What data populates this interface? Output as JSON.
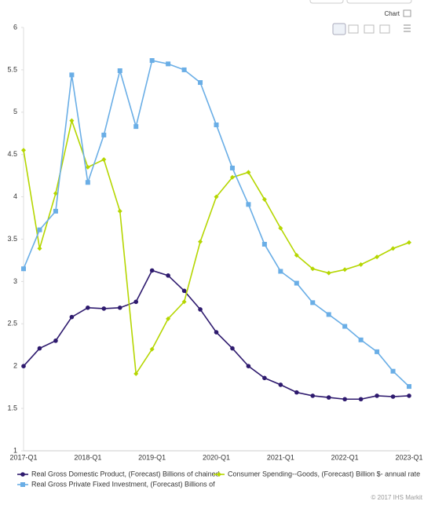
{
  "chart_data": {
    "type": "line",
    "categories": [
      "2017-Q1",
      null,
      null,
      null,
      "2018-Q1",
      null,
      null,
      null,
      "2019-Q1",
      null,
      null,
      null,
      "2020-Q1",
      null,
      null,
      null,
      "2021-Q1",
      null,
      null,
      null,
      "2022-Q1",
      null,
      null,
      null,
      "2023-Q1"
    ],
    "series": [
      {
        "name": "Real Gross Domestic Product, (Forecast) Billions of chained",
        "color": "#2e1a6e",
        "marker": "circle",
        "values": [
          2.0,
          2.21,
          2.3,
          2.58,
          2.69,
          2.68,
          2.69,
          2.76,
          3.13,
          3.07,
          2.89,
          2.67,
          2.4,
          2.21,
          2.0,
          1.86,
          1.78,
          1.69,
          1.65,
          1.63,
          1.61,
          1.61,
          1.65,
          1.64,
          1.65
        ]
      },
      {
        "name": "Consumer Spending--Goods, (Forecast) Billion $- annual rate",
        "color": "#b5d600",
        "marker": "diamond",
        "values": [
          4.55,
          3.39,
          4.04,
          4.9,
          4.35,
          4.44,
          3.83,
          1.91,
          2.2,
          2.56,
          2.76,
          3.47,
          4.0,
          4.23,
          4.29,
          3.97,
          3.63,
          3.31,
          3.15,
          3.1,
          3.14,
          3.2,
          3.29,
          3.39,
          3.46
        ]
      },
      {
        "name": "Real Gross Private Fixed Investment, (Forecast) Billions of",
        "color": "#6aaee6",
        "marker": "square",
        "values": [
          3.15,
          3.61,
          3.83,
          5.44,
          4.17,
          4.73,
          5.49,
          4.83,
          5.61,
          5.57,
          5.5,
          5.35,
          4.85,
          4.34,
          3.91,
          3.44,
          3.12,
          2.98,
          2.75,
          2.61,
          2.47,
          2.31,
          2.17,
          1.94,
          1.76
        ]
      }
    ],
    "ylim": [
      1,
      6
    ],
    "yticks": [
      1,
      1.5,
      2,
      2.5,
      3,
      3.5,
      4,
      4.5,
      5,
      5.5,
      6
    ],
    "grid": false
  },
  "toolbar": {
    "label": "Chart"
  },
  "footer": "© 2017 IHS Markit"
}
